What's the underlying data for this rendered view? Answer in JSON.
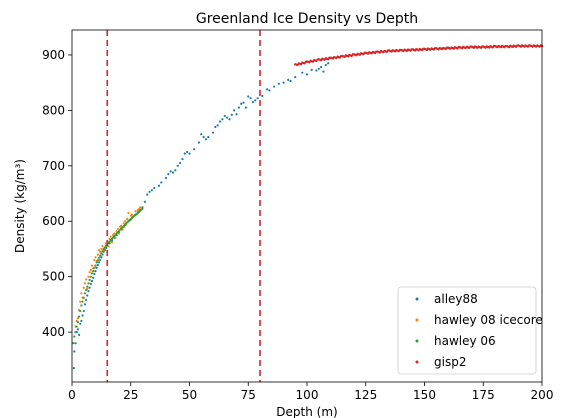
{
  "chart_data": {
    "type": "scatter",
    "title": "Greenland Ice Density vs Depth",
    "xlabel": "Depth (m)",
    "ylabel": "Density (kg/m³)",
    "xlim": [
      0,
      200
    ],
    "ylim": [
      310,
      945
    ],
    "xticks": [
      0,
      25,
      50,
      75,
      100,
      125,
      150,
      175,
      200
    ],
    "yticks": [
      400,
      500,
      600,
      700,
      800,
      900
    ],
    "grid": false,
    "legend_position": "bottom-right",
    "vertical_lines": [
      {
        "x": 15,
        "color": "#d62728",
        "style": "dashed"
      },
      {
        "x": 80,
        "color": "#d62728",
        "style": "dashed"
      }
    ],
    "series": [
      {
        "name": "alley88",
        "color": "#1f77b4",
        "points": [
          [
            0.8,
            335
          ],
          [
            1.0,
            365
          ],
          [
            1.5,
            380
          ],
          [
            2.0,
            400
          ],
          [
            2.5,
            405
          ],
          [
            3.0,
            395
          ],
          [
            3.5,
            415
          ],
          [
            4.0,
            420
          ],
          [
            4.5,
            430
          ],
          [
            5.0,
            438
          ],
          [
            5.5,
            450
          ],
          [
            6.0,
            458
          ],
          [
            6.5,
            466
          ],
          [
            7.0,
            474
          ],
          [
            7.5,
            480
          ],
          [
            8.0,
            487
          ],
          [
            8.5,
            492
          ],
          [
            9.0,
            498
          ],
          [
            9.5,
            505
          ],
          [
            10.0,
            510
          ],
          [
            10.5,
            516
          ],
          [
            11.0,
            521
          ],
          [
            11.5,
            526
          ],
          [
            12.0,
            530
          ],
          [
            12.5,
            535
          ],
          [
            13.0,
            540
          ],
          [
            13.5,
            545
          ],
          [
            14.0,
            548
          ],
          [
            14.5,
            552
          ],
          [
            15.0,
            556
          ],
          [
            16.0,
            560
          ],
          [
            17.0,
            565
          ],
          [
            18.0,
            570
          ],
          [
            19.0,
            575
          ],
          [
            20.0,
            580
          ],
          [
            21.0,
            585
          ],
          [
            22.0,
            590
          ],
          [
            23.0,
            595
          ],
          [
            24.0,
            600
          ],
          [
            25.0,
            603
          ],
          [
            26.0,
            608
          ],
          [
            27.0,
            612
          ],
          [
            28.0,
            616
          ],
          [
            29.0,
            620
          ],
          [
            30.0,
            625
          ],
          [
            31.0,
            635
          ],
          [
            32.0,
            648
          ],
          [
            33.0,
            653
          ],
          [
            34.0,
            656
          ],
          [
            35.0,
            660
          ],
          [
            37.0,
            664
          ],
          [
            38.0,
            670
          ],
          [
            40.0,
            678
          ],
          [
            41.0,
            685
          ],
          [
            42.0,
            690
          ],
          [
            43.0,
            688
          ],
          [
            44.0,
            692
          ],
          [
            45.0,
            700
          ],
          [
            46.0,
            705
          ],
          [
            47.0,
            712
          ],
          [
            48.0,
            722
          ],
          [
            49.0,
            725
          ],
          [
            50.0,
            722
          ],
          [
            52.0,
            730
          ],
          [
            54.0,
            742
          ],
          [
            55.0,
            757
          ],
          [
            56.0,
            752
          ],
          [
            57.0,
            748
          ],
          [
            58.0,
            752
          ],
          [
            60.0,
            760
          ],
          [
            61.0,
            770
          ],
          [
            62.0,
            773
          ],
          [
            63.0,
            780
          ],
          [
            64.0,
            784
          ],
          [
            65.0,
            790
          ],
          [
            66.0,
            787
          ],
          [
            67.0,
            784
          ],
          [
            68.0,
            792
          ],
          [
            69.0,
            800
          ],
          [
            70.0,
            793
          ],
          [
            71.0,
            805
          ],
          [
            72.0,
            812
          ],
          [
            73.0,
            814
          ],
          [
            74.0,
            805
          ],
          [
            75.0,
            825
          ],
          [
            76.0,
            822
          ],
          [
            77.0,
            815
          ],
          [
            78.0,
            818
          ],
          [
            79.0,
            822
          ],
          [
            81.0,
            826
          ],
          [
            83.0,
            838
          ],
          [
            84.0,
            836
          ],
          [
            86.0,
            843
          ],
          [
            88.0,
            848
          ],
          [
            90.0,
            850
          ],
          [
            92.0,
            855
          ],
          [
            93.0,
            853
          ],
          [
            95.0,
            860
          ],
          [
            98.0,
            868
          ],
          [
            100.0,
            865
          ],
          [
            102.0,
            873
          ],
          [
            104.0,
            872
          ],
          [
            105.0,
            875
          ],
          [
            106.0,
            878
          ],
          [
            107.0,
            870
          ],
          [
            108.0,
            882
          ],
          [
            109.0,
            885
          ]
        ]
      },
      {
        "name": "hawley 08 icecore",
        "color": "#ff7f0e",
        "points": [
          [
            1.5,
            410
          ],
          [
            2.0,
            420
          ],
          [
            2.5,
            425
          ],
          [
            3.0,
            440
          ],
          [
            3.5,
            455
          ],
          [
            4.0,
            470
          ],
          [
            4.5,
            462
          ],
          [
            5.0,
            480
          ],
          [
            5.5,
            488
          ],
          [
            6.0,
            495
          ],
          [
            6.5,
            478
          ],
          [
            7.0,
            500
          ],
          [
            7.5,
            508
          ],
          [
            8.0,
            512
          ],
          [
            8.5,
            520
          ],
          [
            9.0,
            515
          ],
          [
            9.5,
            530
          ],
          [
            10.0,
            535
          ],
          [
            10.5,
            528
          ],
          [
            11.0,
            540
          ],
          [
            11.5,
            548
          ],
          [
            12.0,
            545
          ],
          [
            12.5,
            550
          ],
          [
            13.0,
            555
          ],
          [
            13.5,
            548
          ],
          [
            14.0,
            552
          ],
          [
            14.5,
            560
          ],
          [
            15.0,
            564
          ],
          [
            15.5,
            555
          ],
          [
            16.0,
            568
          ],
          [
            16.5,
            572
          ],
          [
            17.0,
            562
          ],
          [
            17.5,
            575
          ],
          [
            18.0,
            578
          ],
          [
            18.5,
            570
          ],
          [
            19.0,
            582
          ],
          [
            19.5,
            586
          ],
          [
            20.0,
            578
          ],
          [
            20.5,
            590
          ],
          [
            21.0,
            592
          ],
          [
            21.5,
            585
          ],
          [
            22.0,
            596
          ],
          [
            22.5,
            600
          ],
          [
            23.0,
            594
          ],
          [
            23.5,
            604
          ],
          [
            24.0,
            615
          ],
          [
            24.5,
            602
          ],
          [
            25.0,
            610
          ],
          [
            25.5,
            612
          ],
          [
            26.0,
            608
          ],
          [
            27.0,
            618
          ],
          [
            28.0,
            620
          ],
          [
            28.5,
            622
          ],
          [
            29.0,
            625
          ]
        ]
      },
      {
        "name": "hawley 06",
        "color": "#2ca02c",
        "points": [
          [
            0.5,
            380
          ],
          [
            1.0,
            392
          ],
          [
            1.5,
            400
          ],
          [
            2.0,
            410
          ],
          [
            2.5,
            418
          ],
          [
            3.0,
            428
          ],
          [
            3.5,
            438
          ],
          [
            4.0,
            448
          ],
          [
            4.5,
            455
          ],
          [
            5.0,
            462
          ],
          [
            5.5,
            470
          ],
          [
            6.0,
            476
          ],
          [
            6.5,
            482
          ],
          [
            7.0,
            488
          ],
          [
            7.5,
            494
          ],
          [
            8.0,
            500
          ],
          [
            8.5,
            506
          ],
          [
            9.0,
            510
          ],
          [
            9.5,
            516
          ],
          [
            10.0,
            520
          ],
          [
            10.5,
            526
          ],
          [
            11.0,
            530
          ],
          [
            11.5,
            534
          ],
          [
            12.0,
            538
          ],
          [
            12.5,
            542
          ],
          [
            13.0,
            546
          ],
          [
            13.5,
            550
          ],
          [
            14.0,
            553
          ],
          [
            14.5,
            556
          ],
          [
            15.0,
            558
          ],
          [
            15.5,
            561
          ],
          [
            16.0,
            563
          ],
          [
            16.5,
            566
          ],
          [
            17.0,
            568
          ],
          [
            17.5,
            571
          ],
          [
            18.0,
            573
          ],
          [
            18.5,
            575
          ],
          [
            19.0,
            578
          ],
          [
            19.5,
            580
          ],
          [
            20.0,
            582
          ],
          [
            20.5,
            585
          ],
          [
            21.0,
            587
          ],
          [
            21.5,
            589
          ],
          [
            22.0,
            591
          ],
          [
            22.5,
            593
          ],
          [
            23.0,
            596
          ],
          [
            23.5,
            598
          ],
          [
            24.0,
            600
          ],
          [
            24.5,
            602
          ],
          [
            25.0,
            604
          ],
          [
            25.5,
            606
          ],
          [
            26.0,
            608
          ],
          [
            26.5,
            610
          ],
          [
            27.0,
            611
          ],
          [
            27.5,
            613
          ],
          [
            28.0,
            615
          ],
          [
            28.5,
            617
          ],
          [
            29.0,
            619
          ],
          [
            29.5,
            621
          ],
          [
            30.0,
            623
          ]
        ]
      },
      {
        "name": "gisp2",
        "color": "#d62728",
        "x_range": [
          95,
          200
        ],
        "curve_points": [
          [
            95,
            882
          ],
          [
            100,
            887
          ],
          [
            105,
            891
          ],
          [
            110,
            894
          ],
          [
            115,
            897
          ],
          [
            120,
            900
          ],
          [
            125,
            903
          ],
          [
            130,
            905
          ],
          [
            135,
            907
          ],
          [
            140,
            908
          ],
          [
            145,
            909
          ],
          [
            150,
            910
          ],
          [
            155,
            911
          ],
          [
            160,
            912
          ],
          [
            165,
            913
          ],
          [
            170,
            914
          ],
          [
            175,
            914
          ],
          [
            180,
            915
          ],
          [
            185,
            915
          ],
          [
            190,
            916
          ],
          [
            195,
            916
          ],
          [
            200,
            916
          ]
        ]
      }
    ]
  }
}
